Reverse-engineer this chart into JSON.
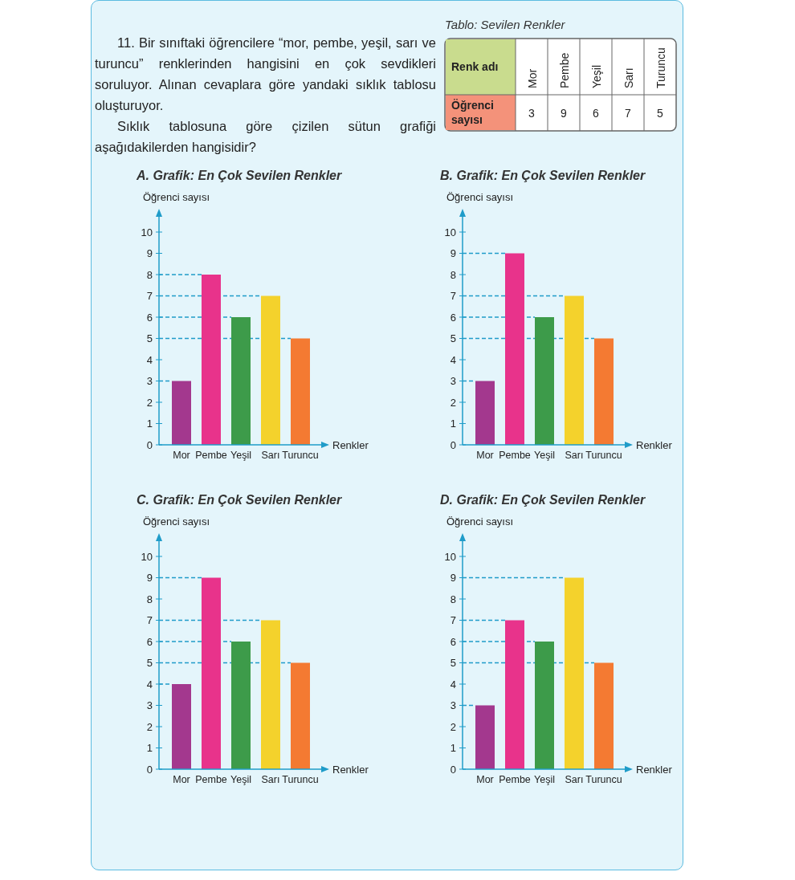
{
  "chart_data": [
    {
      "type": "other",
      "title": "Tablo: Sevilen Renkler",
      "annotations": [
        "11. Bir sınıftaki öğrencilere “mor, pembe, yeşil, sarı ve turuncu” renklerinden hangisini en çok sevdikleri soruluyor. Alınan cevaplara göre yandaki sıklık tablosu oluşturuyor.",
        "Sıklık tablosuna göre çizilen sütun grafiği aşağıdakilerden hangisidir?"
      ],
      "xlabel": "Renk adı",
      "ylabel": "Öğrenci sayısı",
      "categories": [
        "Mor",
        "Pembe",
        "Yeşil",
        "Sarı",
        "Turuncu"
      ],
      "values": [
        3,
        9,
        6,
        7,
        5
      ],
      "data_labels": true
    },
    {
      "type": "bar",
      "title": "A. Grafik: En Çok Sevilen Renkler",
      "ylabel": "Öğrenci sayısı",
      "xlabel": "Renkler",
      "categories": [
        "Mor",
        "Pembe",
        "Yeşil",
        "Sarı",
        "Turuncu"
      ],
      "values": [
        3,
        8,
        6,
        7,
        5
      ],
      "colors": [
        "#a3388e",
        "#e8338b",
        "#3d9b4a",
        "#f4d22c",
        "#f47a32"
      ],
      "ylim": [
        0,
        10
      ],
      "yticks": [
        0,
        1,
        2,
        3,
        4,
        5,
        6,
        7,
        8,
        9,
        10
      ],
      "ref_lines": [
        {
          "axis": "y",
          "value": 8,
          "color": "#1f9cc9",
          "line_style": "dashed"
        },
        {
          "axis": "y",
          "value": 7,
          "color": "#1f9cc9",
          "line_style": "dashed"
        },
        {
          "axis": "y",
          "value": 6,
          "color": "#1f9cc9",
          "line_style": "dashed"
        },
        {
          "axis": "y",
          "value": 5,
          "color": "#1f9cc9",
          "line_style": "dashed"
        },
        {
          "axis": "y",
          "value": 3,
          "color": "#1f9cc9",
          "line_style": "dashed"
        }
      ]
    },
    {
      "type": "bar",
      "title": "B. Grafik: En Çok Sevilen Renkler",
      "ylabel": "Öğrenci sayısı",
      "xlabel": "Renkler",
      "categories": [
        "Mor",
        "Pembe",
        "Yeşil",
        "Sarı",
        "Turuncu"
      ],
      "values": [
        3,
        9,
        6,
        7,
        5
      ],
      "colors": [
        "#a3388e",
        "#e8338b",
        "#3d9b4a",
        "#f4d22c",
        "#f47a32"
      ],
      "ylim": [
        0,
        10
      ],
      "yticks": [
        0,
        1,
        2,
        3,
        4,
        5,
        6,
        7,
        8,
        9,
        10
      ],
      "ref_lines": [
        {
          "axis": "y",
          "value": 9,
          "color": "#1f9cc9",
          "line_style": "dashed"
        },
        {
          "axis": "y",
          "value": 7,
          "color": "#1f9cc9",
          "line_style": "dashed"
        },
        {
          "axis": "y",
          "value": 6,
          "color": "#1f9cc9",
          "line_style": "dashed"
        },
        {
          "axis": "y",
          "value": 5,
          "color": "#1f9cc9",
          "line_style": "dashed"
        },
        {
          "axis": "y",
          "value": 3,
          "color": "#1f9cc9",
          "line_style": "dashed"
        }
      ]
    },
    {
      "type": "bar",
      "title": "C. Grafik: En Çok Sevilen Renkler",
      "ylabel": "Öğrenci sayısı",
      "xlabel": "Renkler",
      "categories": [
        "Mor",
        "Pembe",
        "Yeşil",
        "Sarı",
        "Turuncu"
      ],
      "values": [
        4,
        9,
        6,
        7,
        5
      ],
      "colors": [
        "#a3388e",
        "#e8338b",
        "#3d9b4a",
        "#f4d22c",
        "#f47a32"
      ],
      "ylim": [
        0,
        10
      ],
      "yticks": [
        0,
        1,
        2,
        3,
        4,
        5,
        6,
        7,
        8,
        9,
        10
      ],
      "ref_lines": [
        {
          "axis": "y",
          "value": 9,
          "color": "#1f9cc9",
          "line_style": "dashed"
        },
        {
          "axis": "y",
          "value": 7,
          "color": "#1f9cc9",
          "line_style": "dashed"
        },
        {
          "axis": "y",
          "value": 6,
          "color": "#1f9cc9",
          "line_style": "dashed"
        },
        {
          "axis": "y",
          "value": 5,
          "color": "#1f9cc9",
          "line_style": "dashed"
        },
        {
          "axis": "y",
          "value": 4,
          "color": "#1f9cc9",
          "line_style": "dashed"
        }
      ]
    },
    {
      "type": "bar",
      "title": "D. Grafik: En Çok Sevilen Renkler",
      "ylabel": "Öğrenci sayısı",
      "xlabel": "Renkler",
      "categories": [
        "Mor",
        "Pembe",
        "Yeşil",
        "Sarı",
        "Turuncu"
      ],
      "values": [
        3,
        7,
        6,
        9,
        5
      ],
      "colors": [
        "#a3388e",
        "#e8338b",
        "#3d9b4a",
        "#f4d22c",
        "#f47a32"
      ],
      "ylim": [
        0,
        10
      ],
      "yticks": [
        0,
        1,
        2,
        3,
        4,
        5,
        6,
        7,
        8,
        9,
        10
      ],
      "ref_lines": [
        {
          "axis": "y",
          "value": 9,
          "color": "#1f9cc9",
          "line_style": "dashed"
        },
        {
          "axis": "y",
          "value": 7,
          "color": "#1f9cc9",
          "line_style": "dashed"
        },
        {
          "axis": "y",
          "value": 6,
          "color": "#1f9cc9",
          "line_style": "dashed"
        },
        {
          "axis": "y",
          "value": 5,
          "color": "#1f9cc9",
          "line_style": "dashed"
        },
        {
          "axis": "y",
          "value": 3,
          "color": "#1f9cc9",
          "line_style": "dashed"
        }
      ]
    }
  ]
}
